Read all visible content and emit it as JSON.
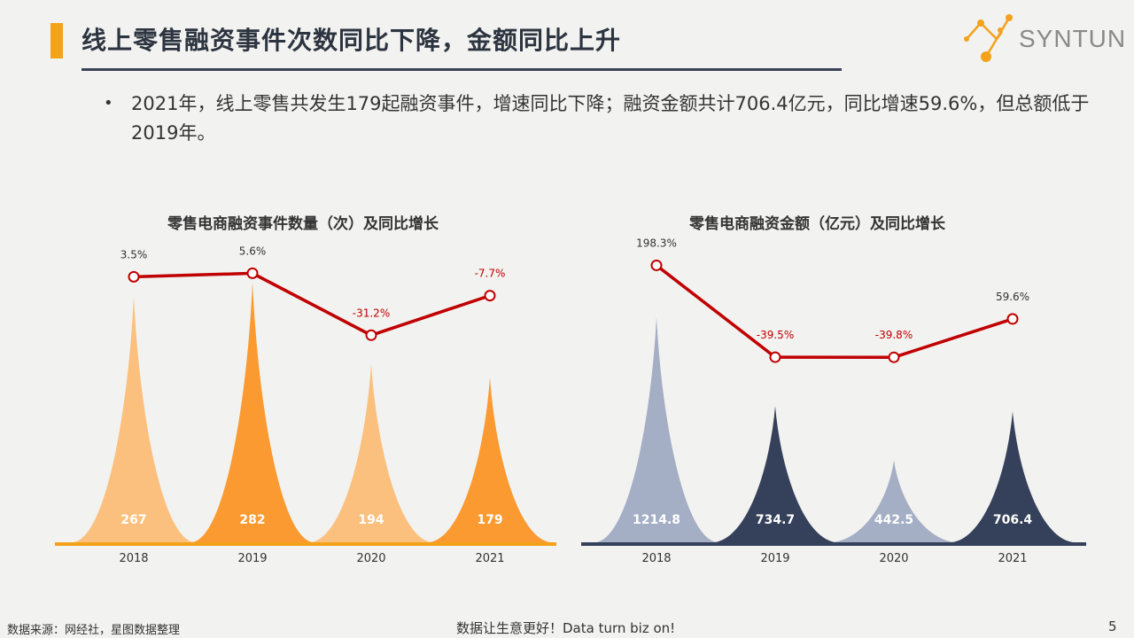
{
  "header": {
    "title": "线上零售融资事件次数同比下降，金额同比上升",
    "logo_text": "SYNTUN"
  },
  "bullet": {
    "text": "2021年，线上零售共发生179起融资事件，增速同比下降；融资金额共计706.4亿元，同比增速59.6%，但总额低于2019年。"
  },
  "footer": {
    "source": "数据来源：网经社，星图数据整理",
    "slogan": "数据让生意更好！Data turn biz on!",
    "page": "5"
  },
  "colors": {
    "accent": "#f5a21b",
    "line": "#c00000",
    "orange_light": "#fcc07e",
    "orange_dark": "#fb9a30",
    "navy_light": "#a4aec4",
    "navy_dark": "#35405a"
  },
  "chart_data": [
    {
      "type": "bar",
      "title": "零售电商融资事件数量（次）及同比增长",
      "categories": [
        "2018",
        "2019",
        "2020",
        "2021"
      ],
      "series": [
        {
          "values": [
            267,
            282,
            194,
            179
          ]
        },
        {
          "values": [
            3.5,
            5.6,
            -31.2,
            -7.7
          ]
        }
      ],
      "value_labels": [
        "267",
        "282",
        "194",
        "179"
      ],
      "growth_labels": [
        "3.5%",
        "5.6%",
        "-31.2%",
        "-7.7%"
      ]
    },
    {
      "type": "bar",
      "title": "零售电商融资金额（亿元）及同比增长",
      "categories": [
        "2018",
        "2019",
        "2020",
        "2021"
      ],
      "series": [
        {
          "values": [
            1214.8,
            734.7,
            442.5,
            706.4
          ]
        },
        {
          "values": [
            198.3,
            -39.5,
            -39.8,
            59.6
          ]
        }
      ],
      "value_labels": [
        "1214.8",
        "734.7",
        "442.5",
        "706.4"
      ],
      "growth_labels": [
        "198.3%",
        "-39.5%",
        "-39.8%",
        "59.6%"
      ]
    }
  ]
}
